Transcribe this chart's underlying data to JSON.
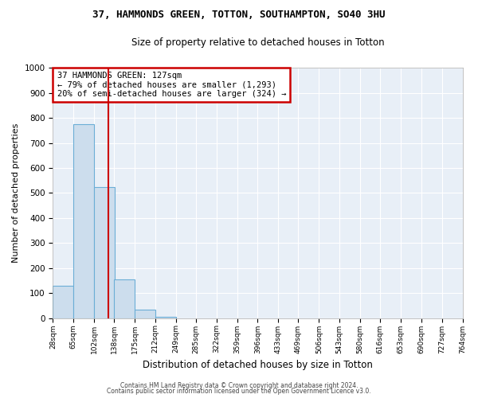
{
  "title": "37, HAMMONDS GREEN, TOTTON, SOUTHAMPTON, SO40 3HU",
  "subtitle": "Size of property relative to detached houses in Totton",
  "xlabel": "Distribution of detached houses by size in Totton",
  "ylabel": "Number of detached properties",
  "bar_color": "#ccdded",
  "bar_edge_color": "#6baed6",
  "background_color": "#e8eff7",
  "grid_color": "#ffffff",
  "bin_edges": [
    28,
    65,
    102,
    138,
    175,
    212,
    249,
    285,
    322,
    359,
    396,
    433,
    469,
    506,
    543,
    580,
    616,
    653,
    690,
    727,
    764
  ],
  "bar_heights": [
    130,
    775,
    525,
    155,
    35,
    5,
    0,
    0,
    0,
    0,
    0,
    0,
    0,
    0,
    0,
    0,
    0,
    0,
    0,
    0
  ],
  "property_size": 127,
  "vline_color": "#cc0000",
  "annotation_line1": "37 HAMMONDS GREEN: 127sqm",
  "annotation_line2": "← 79% of detached houses are smaller (1,293)",
  "annotation_line3": "20% of semi-detached houses are larger (324) →",
  "annotation_box_color": "#cc0000",
  "ylim": [
    0,
    1000
  ],
  "yticks": [
    0,
    100,
    200,
    300,
    400,
    500,
    600,
    700,
    800,
    900,
    1000
  ],
  "tick_labels": [
    "28sqm",
    "65sqm",
    "102sqm",
    "138sqm",
    "175sqm",
    "212sqm",
    "249sqm",
    "285sqm",
    "322sqm",
    "359sqm",
    "396sqm",
    "433sqm",
    "469sqm",
    "506sqm",
    "543sqm",
    "580sqm",
    "616sqm",
    "653sqm",
    "690sqm",
    "727sqm",
    "764sqm"
  ],
  "footer_line1": "Contains HM Land Registry data © Crown copyright and database right 2024.",
  "footer_line2": "Contains public sector information licensed under the Open Government Licence v3.0."
}
